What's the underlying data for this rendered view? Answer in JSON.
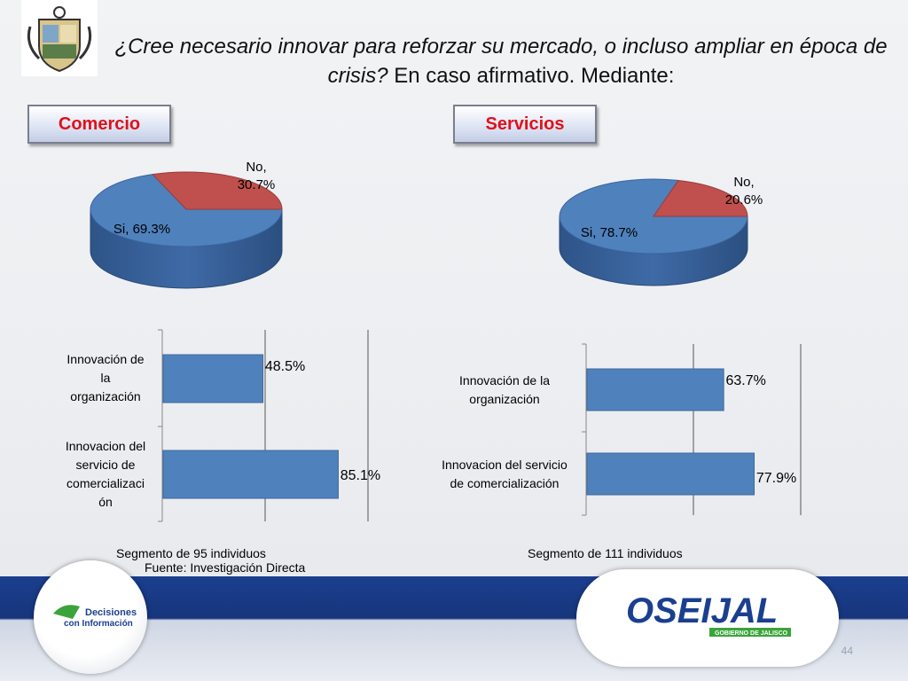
{
  "title": {
    "italic": "¿Cree necesario innovar para reforzar su mercado, o incluso ampliar en época de crisis?",
    "normal": "En caso afirmativo. Mediante:"
  },
  "left": {
    "header": "Comercio",
    "segment": "Segmento de 95 individuos",
    "source": "Fuente: Investigación Directa"
  },
  "right": {
    "header": "Servicios",
    "segment": "Segmento de 111 individuos"
  },
  "colors": {
    "blue": "#4f81bd",
    "red": "#c0504d",
    "header_text": "#e0101a"
  },
  "page_number": "44",
  "footer": {
    "left_logo_line1": "Decisiones",
    "left_logo_line2": "con Información",
    "right_logo": "OSEIJAL",
    "right_logo_sub": "GOBIERNO DE JALISCO"
  },
  "chart_data": [
    {
      "type": "pie",
      "title": "Comercio",
      "labels": [
        "Si",
        "No"
      ],
      "values": [
        69.3,
        30.7
      ],
      "display_labels": [
        "Si, 69.3%",
        "No, 30.7%"
      ],
      "colors": [
        "#4f81bd",
        "#c0504d"
      ]
    },
    {
      "type": "pie",
      "title": "Servicios",
      "labels": [
        "Si",
        "No"
      ],
      "values": [
        78.7,
        20.6
      ],
      "display_labels": [
        "Si, 78.7%",
        "No, 20.6%"
      ],
      "colors": [
        "#4f81bd",
        "#c0504d"
      ]
    },
    {
      "type": "bar",
      "orientation": "horizontal",
      "title": "Comercio",
      "categories": [
        "Innovación de la organización",
        "Innovacion del servicio de comercialización"
      ],
      "category_lines": [
        [
          "Innovación de",
          "la",
          "organización"
        ],
        [
          "Innovacion del",
          "servicio de",
          "comercializaci",
          "ón"
        ]
      ],
      "values": [
        48.5,
        85.1
      ],
      "data_labels": [
        "48.5%",
        "85.1%"
      ],
      "xlim": [
        0,
        100
      ],
      "grid": true
    },
    {
      "type": "bar",
      "orientation": "horizontal",
      "title": "Servicios",
      "categories": [
        "Innovación de la organización",
        "Innovacion del servicio de comercialización"
      ],
      "category_lines": [
        [
          "Innovación de la",
          "organización"
        ],
        [
          "Innovacion del servicio",
          "de comercialización"
        ]
      ],
      "values": [
        63.7,
        77.9
      ],
      "data_labels": [
        "63.7%",
        "77.9%"
      ],
      "xlim": [
        0,
        100
      ],
      "grid": true
    }
  ]
}
